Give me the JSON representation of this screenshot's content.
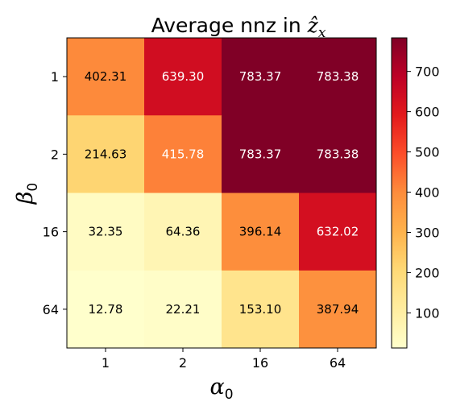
{
  "chart_data": {
    "type": "heatmap",
    "title_prefix": "Average nnz in ",
    "title_math": "ẑ",
    "title_math_sub": "x",
    "xlabel_symbol": "α",
    "xlabel_sub": "0",
    "ylabel_symbol": "β",
    "ylabel_sub": "0",
    "x_categories": [
      "1",
      "2",
      "16",
      "64"
    ],
    "y_categories": [
      "1",
      "2",
      "16",
      "64"
    ],
    "values": [
      [
        402.31,
        639.3,
        783.37,
        783.38
      ],
      [
        214.63,
        415.78,
        783.37,
        783.38
      ],
      [
        32.35,
        64.36,
        396.14,
        632.02
      ],
      [
        12.78,
        22.21,
        153.1,
        387.94
      ]
    ],
    "value_labels": [
      [
        "402.31",
        "639.30",
        "783.37",
        "783.38"
      ],
      [
        "214.63",
        "415.78",
        "783.37",
        "783.38"
      ],
      [
        "32.35",
        "64.36",
        "396.14",
        "632.02"
      ],
      [
        "12.78",
        "22.21",
        "153.10",
        "387.94"
      ]
    ],
    "colormap": "YlOrRd",
    "color_range": [
      12.78,
      783.38
    ],
    "colorbar_ticks": [
      100,
      200,
      300,
      400,
      500,
      600,
      700
    ],
    "colorbar_tick_labels": [
      "100",
      "200",
      "300",
      "400",
      "500",
      "600",
      "700"
    ],
    "colormap_stops": [
      "#ffffcc",
      "#ffeda0",
      "#fed976",
      "#feb24c",
      "#fd8d3c",
      "#fc4e2a",
      "#e31a1c",
      "#bd0026",
      "#800026"
    ]
  }
}
